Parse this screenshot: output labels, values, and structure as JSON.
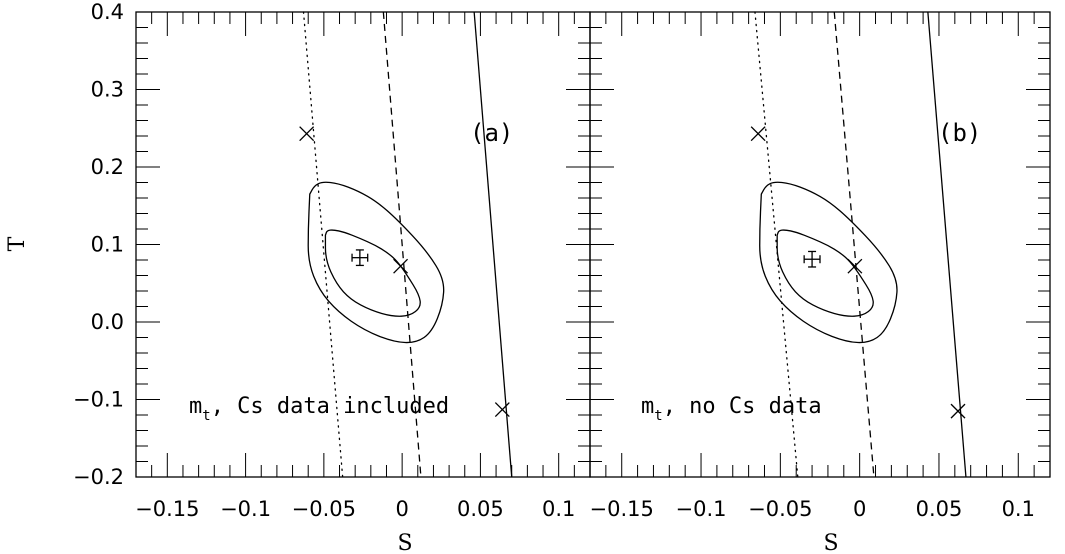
{
  "chart_data": [
    {
      "type": "scatter",
      "panel_label": "(a)",
      "annotation": {
        "main": "m",
        "sub": "t",
        "rest": ", Cs data included"
      },
      "xlabel": "S",
      "ylabel": "T",
      "xlim": [
        -0.17,
        0.12
      ],
      "ylim": [
        -0.2,
        0.4
      ],
      "xticks": [
        -0.15,
        -0.1,
        -0.05,
        0,
        0.05,
        0.1
      ],
      "xticklabels": [
        "−0.15",
        "−0.1",
        "−0.05",
        "0",
        "0.05",
        "0.1"
      ],
      "yticks": [
        -0.2,
        -0.1,
        0.0,
        0.1,
        0.2,
        0.3,
        0.4
      ],
      "yticklabels": [
        "−0.2",
        "−0.1",
        "0.0",
        "0.1",
        "0.2",
        "0.3",
        "0.4"
      ],
      "lines": [
        {
          "style": "dotted",
          "points": [
            [
              -0.063,
              0.4
            ],
            [
              -0.038,
              -0.2
            ]
          ]
        },
        {
          "style": "dashed",
          "points": [
            [
              -0.012,
              0.4
            ],
            [
              0.012,
              -0.2
            ]
          ]
        },
        {
          "style": "solid",
          "points": [
            [
              0.046,
              0.4
            ],
            [
              0.07,
              -0.2
            ]
          ]
        }
      ],
      "markers": [
        {
          "x": -0.061,
          "y": 0.243
        },
        {
          "x": -0.001,
          "y": 0.072
        },
        {
          "x": 0.064,
          "y": -0.113
        }
      ],
      "central_value": {
        "x": -0.027,
        "y": 0.083,
        "xerr": 0.005,
        "yerr": 0.01
      },
      "ellipses": [
        {
          "points": [
            [
              -0.049,
              0.112
            ],
            [
              -0.048,
              0.118
            ],
            [
              -0.044,
              0.119
            ],
            [
              -0.037,
              0.116
            ],
            [
              -0.027,
              0.108
            ],
            [
              -0.017,
              0.099
            ],
            [
              -0.009,
              0.089
            ],
            [
              -0.003,
              0.078
            ],
            [
              0.003,
              0.061
            ],
            [
              0.011,
              0.035
            ],
            [
              0.012,
              0.019
            ],
            [
              0.005,
              0.008
            ],
            [
              -0.006,
              0.007
            ],
            [
              -0.02,
              0.015
            ],
            [
              -0.033,
              0.029
            ],
            [
              -0.042,
              0.049
            ],
            [
              -0.049,
              0.08
            ],
            [
              -0.049,
              0.112
            ]
          ]
        },
        {
          "points": [
            [
              -0.059,
              0.165
            ],
            [
              -0.056,
              0.176
            ],
            [
              -0.051,
              0.181
            ],
            [
              -0.041,
              0.179
            ],
            [
              -0.028,
              0.169
            ],
            [
              -0.016,
              0.155
            ],
            [
              -0.003,
              0.132
            ],
            [
              0.016,
              0.091
            ],
            [
              0.027,
              0.055
            ],
            [
              0.026,
              0.022
            ],
            [
              0.019,
              -0.013
            ],
            [
              0.009,
              -0.027
            ],
            [
              -0.005,
              -0.026
            ],
            [
              -0.024,
              -0.011
            ],
            [
              -0.041,
              0.013
            ],
            [
              -0.053,
              0.041
            ],
            [
              -0.06,
              0.077
            ],
            [
              -0.06,
              0.12
            ],
            [
              -0.059,
              0.165
            ]
          ]
        }
      ]
    },
    {
      "type": "scatter",
      "panel_label": "(b)",
      "annotation": {
        "main": "m",
        "sub": "t",
        "rest": ", no Cs data"
      },
      "xlabel": "S",
      "ylabel": "",
      "xlim": [
        -0.17,
        0.12
      ],
      "ylim": [
        -0.2,
        0.4
      ],
      "xticks": [
        -0.15,
        -0.1,
        -0.05,
        0,
        0.05,
        0.1
      ],
      "xticklabels": [
        "−0.15",
        "−0.1",
        "−0.05",
        "0",
        "0.05",
        "0.1"
      ],
      "yticks": [
        -0.2,
        -0.1,
        0.0,
        0.1,
        0.2,
        0.3,
        0.4
      ],
      "yticklabels": [],
      "lines": [
        {
          "style": "dotted",
          "points": [
            [
              -0.066,
              0.4
            ],
            [
              -0.039,
              -0.2
            ]
          ]
        },
        {
          "style": "dashed",
          "points": [
            [
              -0.016,
              0.4
            ],
            [
              0.009,
              -0.2
            ]
          ]
        },
        {
          "style": "solid",
          "points": [
            [
              0.043,
              0.4
            ],
            [
              0.067,
              -0.2
            ]
          ]
        }
      ],
      "markers": [
        {
          "x": -0.064,
          "y": 0.243
        },
        {
          "x": -0.003,
          "y": 0.072
        },
        {
          "x": 0.062,
          "y": -0.115
        }
      ],
      "central_value": {
        "x": -0.03,
        "y": 0.081,
        "xerr": 0.005,
        "yerr": 0.01
      },
      "ellipses": [
        {
          "points": [
            [
              -0.052,
              0.112
            ],
            [
              -0.051,
              0.118
            ],
            [
              -0.047,
              0.119
            ],
            [
              -0.04,
              0.116
            ],
            [
              -0.03,
              0.108
            ],
            [
              -0.02,
              0.099
            ],
            [
              -0.012,
              0.089
            ],
            [
              -0.006,
              0.078
            ],
            [
              0.0,
              0.061
            ],
            [
              0.008,
              0.035
            ],
            [
              0.009,
              0.019
            ],
            [
              0.002,
              0.008
            ],
            [
              -0.009,
              0.007
            ],
            [
              -0.023,
              0.015
            ],
            [
              -0.036,
              0.029
            ],
            [
              -0.045,
              0.049
            ],
            [
              -0.052,
              0.08
            ],
            [
              -0.052,
              0.112
            ]
          ]
        },
        {
          "points": [
            [
              -0.062,
              0.165
            ],
            [
              -0.059,
              0.176
            ],
            [
              -0.054,
              0.181
            ],
            [
              -0.044,
              0.179
            ],
            [
              -0.031,
              0.169
            ],
            [
              -0.019,
              0.155
            ],
            [
              -0.006,
              0.132
            ],
            [
              0.013,
              0.091
            ],
            [
              0.024,
              0.055
            ],
            [
              0.023,
              0.022
            ],
            [
              0.016,
              -0.013
            ],
            [
              0.006,
              -0.027
            ],
            [
              -0.008,
              -0.026
            ],
            [
              -0.027,
              -0.011
            ],
            [
              -0.044,
              0.013
            ],
            [
              -0.056,
              0.041
            ],
            [
              -0.063,
              0.077
            ],
            [
              -0.063,
              0.12
            ],
            [
              -0.062,
              0.165
            ]
          ]
        }
      ]
    }
  ]
}
